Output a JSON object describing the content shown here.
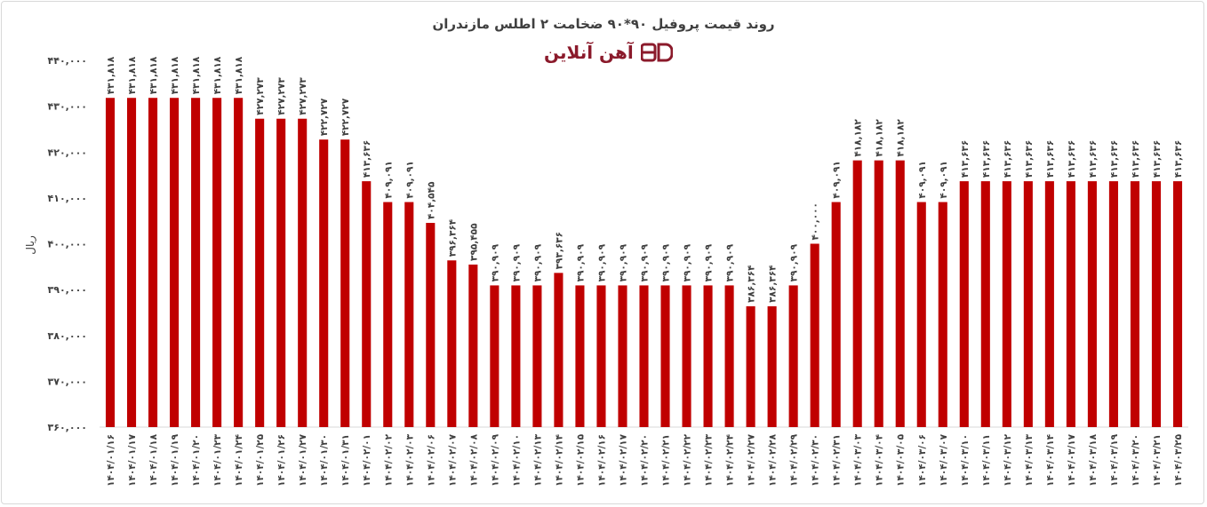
{
  "chart_data": {
    "type": "bar",
    "title": "روند قیمت پروفیل ۹۰*۹۰ ضخامت ۲ اطلس مازندران",
    "logo": "آهن آنلاین",
    "ylabel": "ریال",
    "ylim": [
      360000,
      440000
    ],
    "yticks": [
      360000,
      370000,
      380000,
      390000,
      400000,
      410000,
      420000,
      430000,
      440000
    ],
    "ytick_labels": [
      "۳۶۰,۰۰۰",
      "۳۷۰,۰۰۰",
      "۳۸۰,۰۰۰",
      "۳۹۰,۰۰۰",
      "۴۰۰,۰۰۰",
      "۴۱۰,۰۰۰",
      "۴۲۰,۰۰۰",
      "۴۳۰,۰۰۰",
      "۴۴۰,۰۰۰"
    ],
    "bar_color": "#c00000",
    "categories": [
      "۱۴۰۴/۰۱/۱۶",
      "۱۴۰۴/۰۱/۱۷",
      "۱۴۰۴/۰۱/۱۸",
      "۱۴۰۴/۰۱/۱۹",
      "۱۴۰۴/۰۱/۲۰",
      "۱۴۰۴/۰۱/۲۳",
      "۱۴۰۴/۰۱/۲۴",
      "۱۴۰۴/۰۱/۲۵",
      "۱۴۰۴/۰۱/۲۶",
      "۱۴۰۴/۰۱/۲۷",
      "۱۴۰۴/۰۱/۳۰",
      "۱۴۰۴/۰۱/۳۱",
      "۱۴۰۴/۰۲/۰۱",
      "۱۴۰۴/۰۲/۰۲",
      "۱۴۰۴/۰۲/۰۳",
      "۱۴۰۴/۰۲/۰۶",
      "۱۴۰۴/۰۲/۰۷",
      "۱۴۰۴/۰۲/۰۸",
      "۱۴۰۴/۰۲/۰۹",
      "۱۴۰۴/۰۲/۱۰",
      "۱۴۰۴/۰۲/۱۳",
      "۱۴۰۴/۰۲/۱۴",
      "۱۴۰۴/۰۲/۱۵",
      "۱۴۰۴/۰۲/۱۶",
      "۱۴۰۴/۰۲/۱۷",
      "۱۴۰۴/۰۲/۲۰",
      "۱۴۰۴/۰۲/۲۱",
      "۱۴۰۴/۰۲/۲۲",
      "۱۴۰۴/۰۲/۲۳",
      "۱۴۰۴/۰۲/۲۴",
      "۱۴۰۴/۰۲/۲۷",
      "۱۴۰۴/۰۲/۲۸",
      "۱۴۰۴/۰۲/۲۹",
      "۱۴۰۴/۰۲/۳۰",
      "۱۴۰۴/۰۲/۳۱",
      "۱۴۰۴/۰۳/۰۳",
      "۱۴۰۴/۰۳/۰۴",
      "۱۴۰۴/۰۳/۰۵",
      "۱۴۰۴/۰۳/۰۶",
      "۱۴۰۴/۰۳/۰۷",
      "۱۴۰۴/۰۳/۱۰",
      "۱۴۰۴/۰۳/۱۱",
      "۱۴۰۴/۰۳/۱۲",
      "۱۴۰۴/۰۳/۱۳",
      "۱۴۰۴/۰۳/۱۴",
      "۱۴۰۴/۰۳/۱۷",
      "۱۴۰۴/۰۳/۱۸",
      "۱۴۰۴/۰۳/۱۹",
      "۱۴۰۴/۰۳/۲۰",
      "۱۴۰۴/۰۳/۲۱",
      "۱۴۰۴/۰۳/۲۵"
    ],
    "values": [
      431818,
      431818,
      431818,
      431818,
      431818,
      431818,
      431818,
      427273,
      427273,
      427273,
      422727,
      422727,
      413636,
      409091,
      409091,
      404545,
      396364,
      395455,
      390909,
      390909,
      390909,
      393636,
      390909,
      390909,
      390909,
      390909,
      390909,
      390909,
      390909,
      390909,
      386364,
      386364,
      390909,
      400000,
      409091,
      418182,
      418182,
      418182,
      409091,
      409091,
      413636,
      413636,
      413636,
      413636,
      413636,
      413636,
      413636,
      413636,
      413636,
      413636,
      413636
    ],
    "data_labels": [
      "۴۳۱,۸۱۸",
      "۴۳۱,۸۱۸",
      "۴۳۱,۸۱۸",
      "۴۳۱,۸۱۸",
      "۴۳۱,۸۱۸",
      "۴۳۱,۸۱۸",
      "۴۳۱,۸۱۸",
      "۴۲۷,۲۷۳",
      "۴۲۷,۲۷۳",
      "۴۲۷,۲۷۳",
      "۴۲۲,۷۲۷",
      "۴۲۲,۷۲۷",
      "۴۱۳,۶۳۶",
      "۴۰۹,۰۹۱",
      "۴۰۹,۰۹۱",
      "۴۰۴,۵۴۵",
      "۳۹۶,۳۶۴",
      "۳۹۵,۴۵۵",
      "۳۹۰,۹۰۹",
      "۳۹۰,۹۰۹",
      "۳۹۰,۹۰۹",
      "۳۹۳,۶۳۶",
      "۳۹۰,۹۰۹",
      "۳۹۰,۹۰۹",
      "۳۹۰,۹۰۹",
      "۳۹۰,۹۰۹",
      "۳۹۰,۹۰۹",
      "۳۹۰,۹۰۹",
      "۳۹۰,۹۰۹",
      "۳۹۰,۹۰۹",
      "۳۸۶,۳۶۴",
      "۳۸۶,۳۶۴",
      "۳۹۰,۹۰۹",
      "۴۰۰,۰۰۰",
      "۴۰۹,۰۹۱",
      "۴۱۸,۱۸۲",
      "۴۱۸,۱۸۲",
      "۴۱۸,۱۸۲",
      "۴۰۹,۰۹۱",
      "۴۰۹,۰۹۱",
      "۴۱۳,۶۳۶",
      "۴۱۳,۶۳۶",
      "۴۱۳,۶۳۶",
      "۴۱۳,۶۳۶",
      "۴۱۳,۶۳۶",
      "۴۱۳,۶۳۶",
      "۴۱۳,۶۳۶",
      "۴۱۳,۶۳۶",
      "۴۱۳,۶۳۶",
      "۴۱۳,۶۳۶",
      "۴۱۳,۶۳۶"
    ],
    "grid": false,
    "legend": "none"
  }
}
